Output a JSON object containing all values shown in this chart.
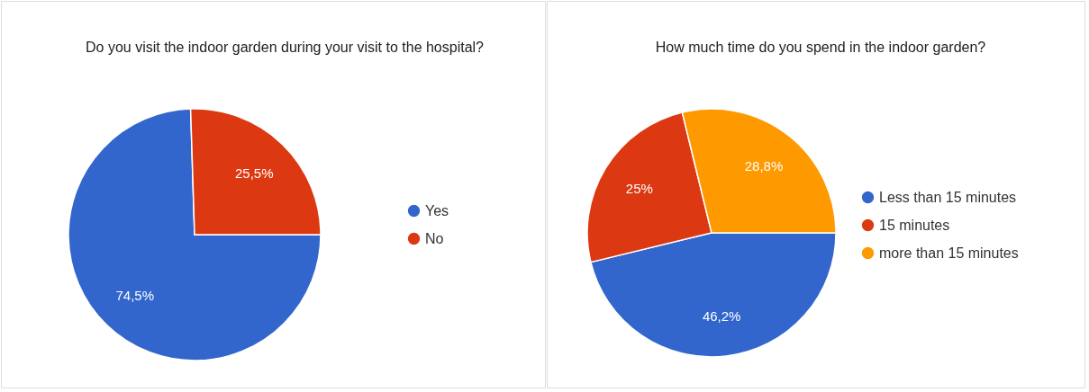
{
  "chart_data": [
    {
      "type": "pie",
      "title": "Do you visit the indoor garden during your visit to the hospital?",
      "categories": [
        "Yes",
        "No"
      ],
      "values": [
        74.5,
        25.5
      ],
      "colors": [
        "#3366cc",
        "#dc3912"
      ],
      "value_labels": [
        "74,5%",
        "25,5%"
      ],
      "legend": "right"
    },
    {
      "type": "pie",
      "title": "How much time do you spend in the indoor garden?",
      "categories": [
        "Less than 15 minutes",
        "15 minutes",
        "more than 15 minutes"
      ],
      "values": [
        46.2,
        25,
        28.8
      ],
      "colors": [
        "#3366cc",
        "#dc3912",
        "#ff9900"
      ],
      "value_labels": [
        "46,2%",
        "25%",
        "28,8%"
      ],
      "legend": "right"
    }
  ]
}
